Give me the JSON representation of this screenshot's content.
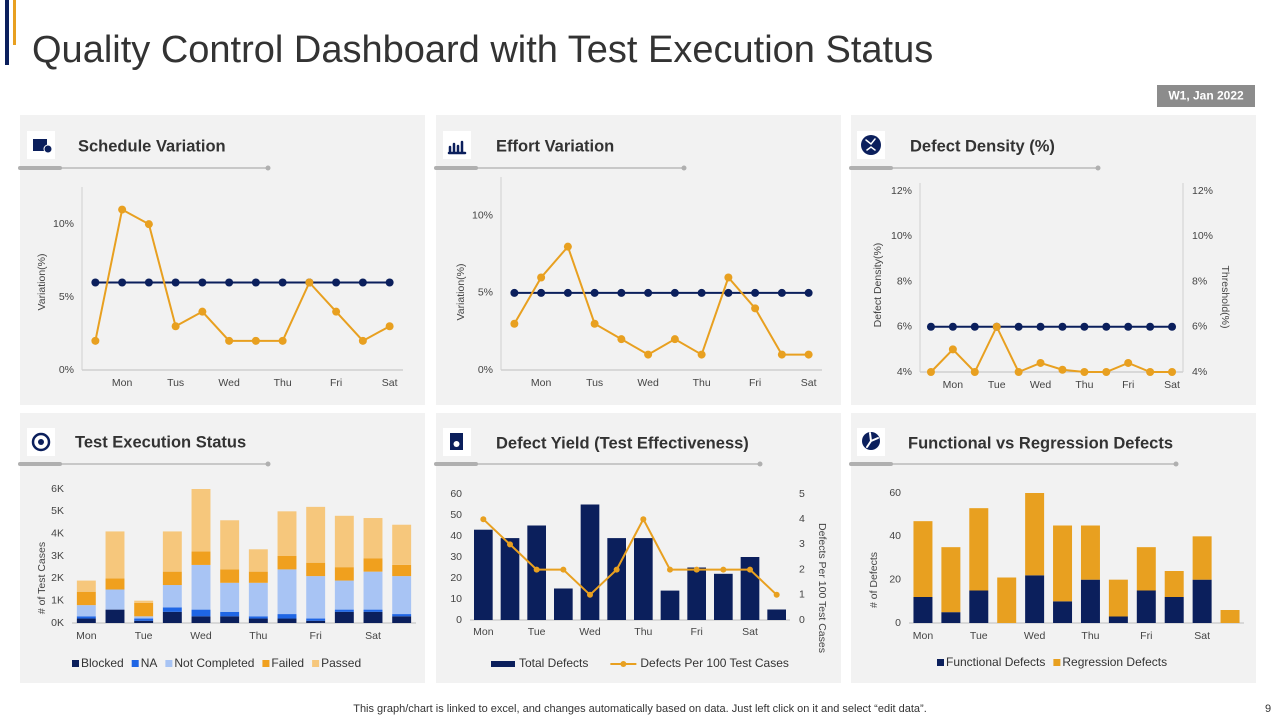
{
  "header": {
    "title": "Quality Control Dashboard with Test Execution Status",
    "badge": "W1, Jan 2022"
  },
  "footer": {
    "note": "This graph/chart is linked to excel, and changes automatically based on data. Just left click on it and select “edit data”.",
    "page": "9"
  },
  "chart_data": [
    {
      "type": "line",
      "title": "Schedule Variation",
      "y_label": "Variation(%)",
      "categories": [
        null,
        "Mon",
        null,
        "Tus",
        null,
        "Wed",
        null,
        "Thu",
        null,
        "Fri",
        null,
        "Sat"
      ],
      "series": [
        {
          "color": "#0b1f5c",
          "values": [
            6,
            6,
            6,
            6,
            6,
            6,
            6,
            6,
            6,
            6,
            6,
            6
          ]
        },
        {
          "color": "#e8a020",
          "values": [
            2,
            11,
            10,
            3,
            4,
            2,
            2,
            2,
            6,
            4,
            2,
            3
          ]
        }
      ],
      "ylim": [
        0,
        12
      ],
      "yticks": [
        {
          "value": 0,
          "label": "0%"
        },
        {
          "value": 5,
          "label": "5%"
        },
        {
          "value": 10,
          "label": "10%"
        }
      ],
      "grid": false
    },
    {
      "type": "line",
      "title": "Effort Variation",
      "y_label": "Variation(%)",
      "categories": [
        null,
        "Mon",
        null,
        "Tus",
        null,
        "Wed",
        null,
        "Thu",
        null,
        "Fri",
        null,
        "Sat"
      ],
      "series": [
        {
          "color": "#0b1f5c",
          "values": [
            5,
            5,
            5,
            5,
            5,
            5,
            5,
            5,
            5,
            5,
            5,
            5
          ]
        },
        {
          "color": "#e8a020",
          "values": [
            3,
            6,
            8,
            3,
            2,
            1,
            2,
            1,
            6,
            4,
            1,
            1
          ]
        }
      ],
      "ylim": [
        0,
        12
      ],
      "yticks": [
        {
          "value": 0,
          "label": "0%"
        },
        {
          "value": 5,
          "label": "5%"
        },
        {
          "value": 10,
          "label": "10%"
        }
      ],
      "grid": false
    },
    {
      "type": "line",
      "title": "Defect Density (%)",
      "y_label": "Defect Density(%)",
      "y2_label": "Threshold(%)",
      "categories": [
        null,
        "Mon",
        null,
        "Tue",
        null,
        "Wed",
        null,
        "Thu",
        null,
        "Fri",
        null,
        "Sat"
      ],
      "series": [
        {
          "color": "#0b1f5c",
          "axis": "y2",
          "values": [
            6,
            6,
            6,
            6,
            6,
            6,
            6,
            6,
            6,
            6,
            6,
            6
          ]
        },
        {
          "color": "#e8a020",
          "values": [
            4,
            5,
            4,
            6,
            4,
            4.4,
            4.1,
            4,
            4,
            4.4,
            4,
            4
          ]
        }
      ],
      "ylim": [
        4,
        12
      ],
      "yticks": [
        {
          "value": 4,
          "label": "4%"
        },
        {
          "value": 6,
          "label": "6%"
        },
        {
          "value": 8,
          "label": "8%"
        },
        {
          "value": 10,
          "label": "10%"
        },
        {
          "value": 12,
          "label": "12%"
        }
      ],
      "y2lim": [
        4,
        12
      ],
      "y2ticks": [
        {
          "value": 4,
          "label": "4%"
        },
        {
          "value": 6,
          "label": "6%"
        },
        {
          "value": 8,
          "label": "8%"
        },
        {
          "value": 10,
          "label": "10%"
        },
        {
          "value": 12,
          "label": "12%"
        }
      ],
      "grid": false
    },
    {
      "type": "bar",
      "stacked": true,
      "title": "Test Execution Status",
      "y_label": "# of Test Cases",
      "legend": "bottom",
      "categories": [
        "Mon",
        null,
        "Tue",
        null,
        "Wed",
        null,
        "Thu",
        null,
        "Fri",
        null,
        "Sat",
        null
      ],
      "series": [
        {
          "name": "Blocked",
          "color": "#0b1f5c",
          "values": [
            200,
            600,
            100,
            500,
            300,
            300,
            200,
            200,
            100,
            500,
            500,
            300
          ]
        },
        {
          "name": "NA",
          "color": "#1f66e5",
          "values": [
            100,
            0,
            100,
            200,
            300,
            200,
            100,
            200,
            100,
            100,
            100,
            100
          ]
        },
        {
          "name": "Not Completed",
          "color": "#a8c4f4",
          "values": [
            500,
            900,
            100,
            1000,
            2000,
            1300,
            1500,
            2000,
            1900,
            1300,
            1700,
            1700
          ]
        },
        {
          "name": "Failed",
          "color": "#f0a01e",
          "values": [
            600,
            500,
            600,
            600,
            600,
            600,
            500,
            600,
            600,
            600,
            600,
            500
          ]
        },
        {
          "name": "Passed",
          "color": "#f6c77c",
          "values": [
            500,
            2100,
            100,
            1800,
            2800,
            2200,
            1000,
            2000,
            2500,
            2300,
            1800,
            1800
          ]
        }
      ],
      "ylim": [
        0,
        6000
      ],
      "yticks": [
        {
          "value": 0,
          "label": "0K"
        },
        {
          "value": 1000,
          "label": "1K"
        },
        {
          "value": 2000,
          "label": "2K"
        },
        {
          "value": 3000,
          "label": "3K"
        },
        {
          "value": 4000,
          "label": "4K"
        },
        {
          "value": 5000,
          "label": "5K"
        },
        {
          "value": 6000,
          "label": "6K"
        }
      ],
      "grid": false
    },
    {
      "type": "bar",
      "title": "Defect Yield (Test Effectiveness)",
      "y2_label": "Defects Per 100 Test Cases",
      "legend": "bottom",
      "categories": [
        "Mon",
        null,
        "Tue",
        null,
        "Wed",
        null,
        "Thu",
        null,
        "Fri",
        null,
        "Sat",
        null
      ],
      "series": [
        {
          "name": "Total Defects",
          "color": "#0b1f5c",
          "values": [
            43,
            39,
            45,
            15,
            55,
            39,
            39,
            14,
            25,
            22,
            30,
            5
          ]
        },
        {
          "name": "Defects Per 100 Test Cases",
          "type": "line",
          "axis": "y2",
          "color": "#e8a020",
          "values": [
            4,
            3,
            2,
            2,
            1,
            2,
            4,
            2,
            2,
            2,
            2,
            1
          ]
        }
      ],
      "ylim": [
        0,
        60
      ],
      "yticks": [
        0,
        10,
        20,
        30,
        40,
        50,
        60
      ],
      "y2lim": [
        0,
        5
      ],
      "y2ticks": [
        0,
        1,
        2,
        3,
        4,
        5
      ],
      "grid": false
    },
    {
      "type": "bar",
      "stacked": true,
      "title": "Functional vs Regression Defects",
      "y_label": "# of Defects",
      "legend": "bottom",
      "categories": [
        "Mon",
        null,
        "Tue",
        null,
        "Wed",
        null,
        "Thu",
        null,
        "Fri",
        null,
        "Sat",
        null
      ],
      "series": [
        {
          "name": "Functional Defects",
          "color": "#0b1f5c",
          "values": [
            12,
            5,
            15,
            0,
            22,
            10,
            20,
            3,
            15,
            12,
            20,
            0
          ]
        },
        {
          "name": "Regression Defects",
          "color": "#e8a020",
          "values": [
            35,
            30,
            38,
            21,
            38,
            35,
            25,
            17,
            20,
            12,
            20,
            6
          ]
        }
      ],
      "ylim": [
        0,
        60
      ],
      "yticks": [
        0,
        20,
        40,
        60
      ],
      "grid": false
    }
  ]
}
